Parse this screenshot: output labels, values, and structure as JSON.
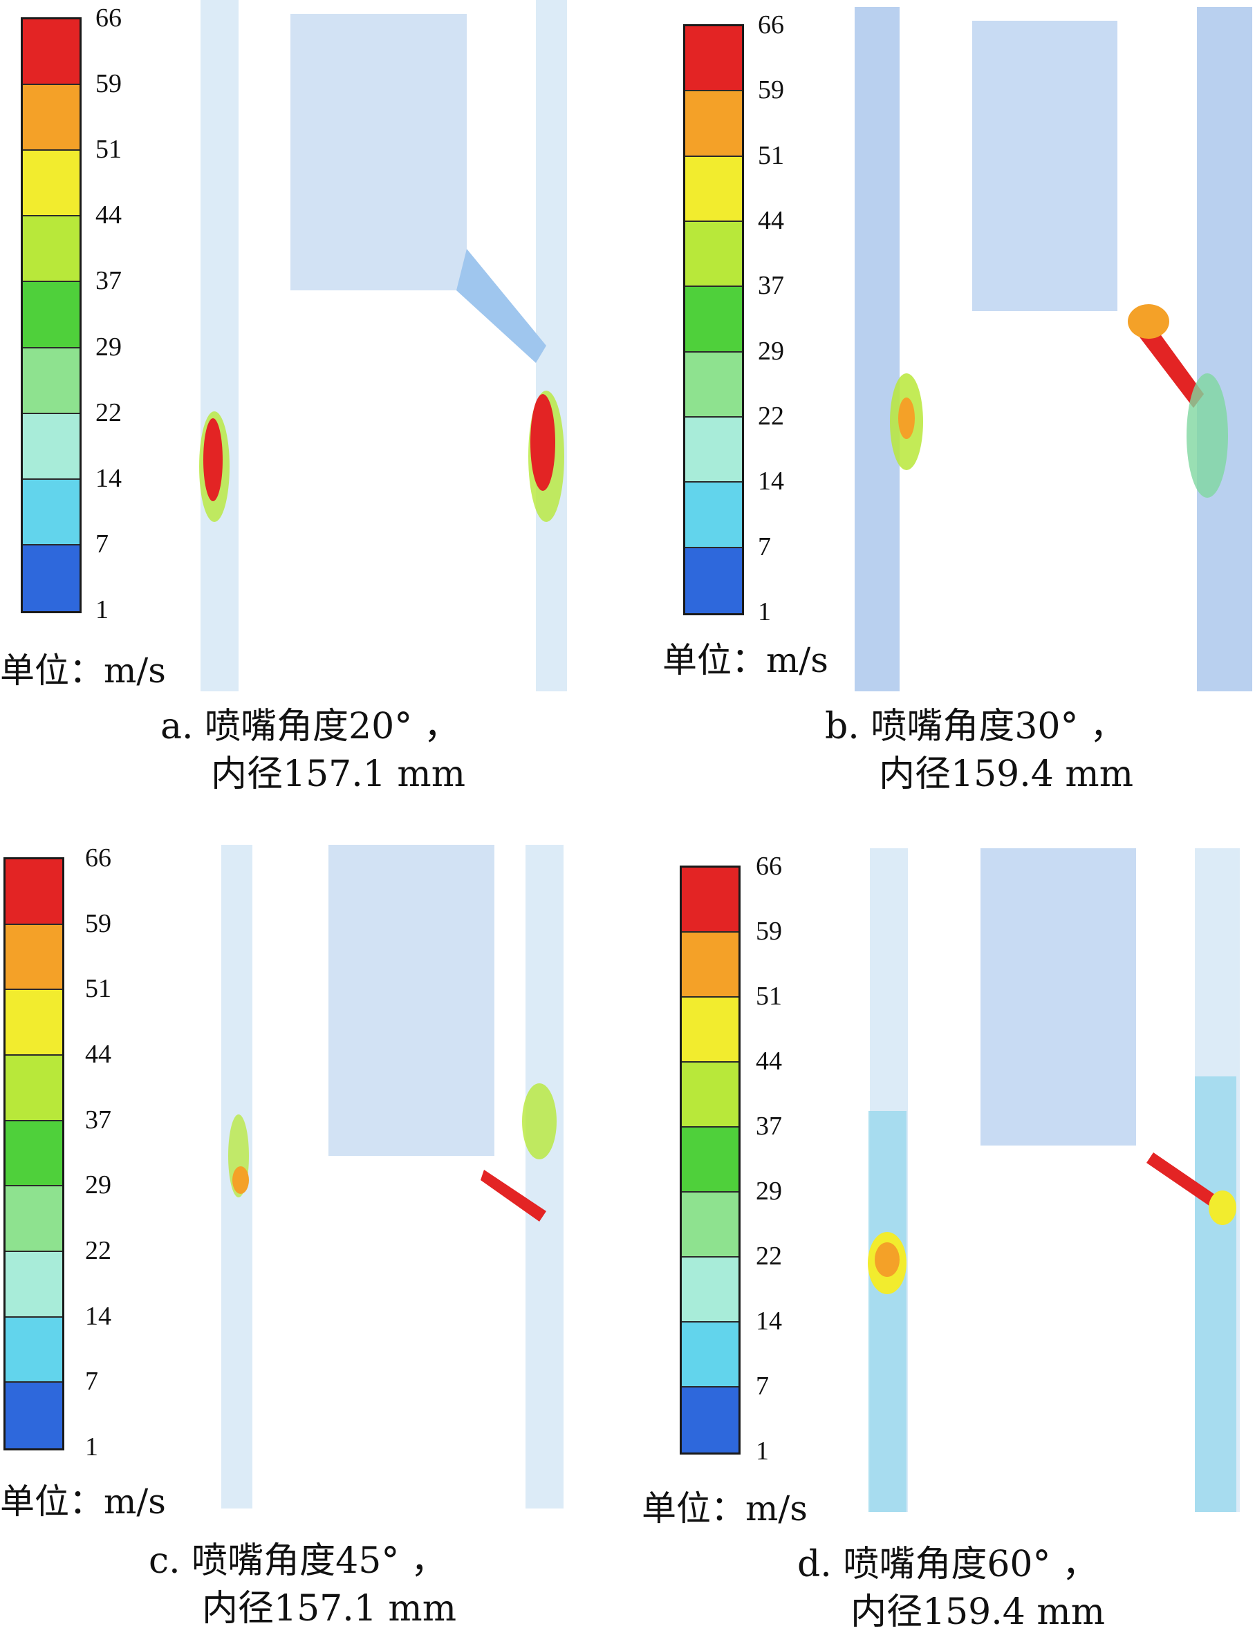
{
  "legend": {
    "ticks": [
      "66",
      "59",
      "51",
      "44",
      "37",
      "29",
      "22",
      "14",
      "7",
      "1"
    ],
    "colors": [
      "#e32424",
      "#f4a128",
      "#f2ec2e",
      "#b8e83a",
      "#4fd03b",
      "#8ee28f",
      "#a8ecd9",
      "#62d4ec",
      "#2e68dc"
    ],
    "unit": "单位：m/s"
  },
  "panels": [
    {
      "id": "a",
      "caption_line1": "a. 喷嘴角度20° ，",
      "caption_line2": "内径157.1 mm"
    },
    {
      "id": "b",
      "caption_line1": "b. 喷嘴角度30° ，",
      "caption_line2": "内径159.4 mm"
    },
    {
      "id": "c",
      "caption_line1": "c. 喷嘴角度45° ，",
      "caption_line2": "内径157.1 mm"
    },
    {
      "id": "d",
      "caption_line1": "d. 喷嘴角度60° ，",
      "caption_line2": "内径159.4 mm"
    }
  ]
}
